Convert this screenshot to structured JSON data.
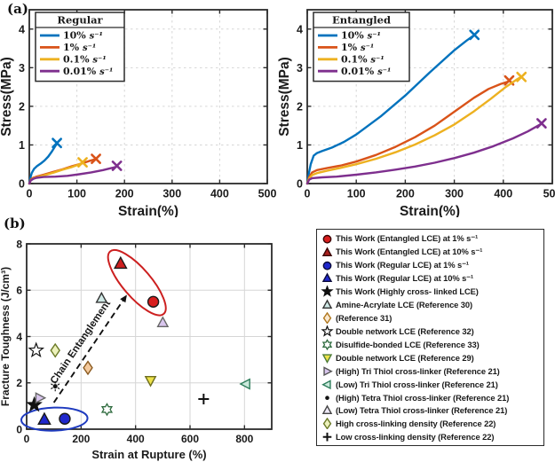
{
  "figure": {
    "panel_a_label": "(a)",
    "panel_b_label": "(b)"
  },
  "chart_data": [
    {
      "id": "regular",
      "type": "line",
      "legend_title": "Regular",
      "xlabel": "Strain(%)",
      "ylabel": "Stress(MPa)",
      "xlim": [
        0,
        500
      ],
      "ylim": [
        0,
        4.5
      ],
      "xticks": [
        0,
        100,
        200,
        300,
        400,
        500
      ],
      "yticks": [
        0,
        1,
        2,
        3,
        4
      ],
      "grid": "dashed",
      "legend_position": "top-left",
      "series": [
        {
          "name": "10%",
          "unit": "s⁻¹",
          "color": "#0072BD",
          "rupture": [
            58,
            1.05
          ],
          "points": [
            [
              0,
              0
            ],
            [
              2,
              0.14
            ],
            [
              5,
              0.27
            ],
            [
              10,
              0.38
            ],
            [
              16,
              0.45
            ],
            [
              24,
              0.52
            ],
            [
              32,
              0.6
            ],
            [
              40,
              0.7
            ],
            [
              48,
              0.84
            ],
            [
              54,
              0.96
            ],
            [
              58,
              1.03
            ]
          ]
        },
        {
          "name": "1%",
          "unit": "s⁻¹",
          "color": "#D95319",
          "rupture": [
            140,
            0.64
          ],
          "points": [
            [
              0,
              0
            ],
            [
              3,
              0.1
            ],
            [
              8,
              0.15
            ],
            [
              15,
              0.18
            ],
            [
              30,
              0.23
            ],
            [
              50,
              0.3
            ],
            [
              70,
              0.37
            ],
            [
              90,
              0.45
            ],
            [
              110,
              0.52
            ],
            [
              125,
              0.58
            ],
            [
              138,
              0.63
            ]
          ]
        },
        {
          "name": "0.1%",
          "unit": "s⁻¹",
          "color": "#EDB120",
          "rupture": [
            112,
            0.55
          ],
          "points": [
            [
              0,
              0
            ],
            [
              3,
              0.08
            ],
            [
              8,
              0.13
            ],
            [
              15,
              0.16
            ],
            [
              30,
              0.21
            ],
            [
              50,
              0.28
            ],
            [
              70,
              0.36
            ],
            [
              90,
              0.43
            ],
            [
              103,
              0.49
            ],
            [
              110,
              0.53
            ]
          ]
        },
        {
          "name": "0.01%",
          "unit": "s⁻¹",
          "color": "#7E2F8E",
          "rupture": [
            184,
            0.46
          ],
          "points": [
            [
              0,
              0
            ],
            [
              3,
              0.08
            ],
            [
              8,
              0.12
            ],
            [
              15,
              0.15
            ],
            [
              30,
              0.17
            ],
            [
              55,
              0.18
            ],
            [
              80,
              0.2
            ],
            [
              105,
              0.24
            ],
            [
              130,
              0.29
            ],
            [
              155,
              0.35
            ],
            [
              172,
              0.4
            ],
            [
              182,
              0.43
            ]
          ]
        }
      ]
    },
    {
      "id": "entangled",
      "type": "line",
      "legend_title": "Entangled",
      "xlabel": "Strain(%)",
      "ylabel": "Stress(MPa)",
      "xlim": [
        0,
        500
      ],
      "ylim": [
        0,
        4.5
      ],
      "xticks": [
        0,
        100,
        200,
        300,
        400,
        500
      ],
      "yticks": [
        0,
        1,
        2,
        3,
        4
      ],
      "grid": "dashed",
      "legend_position": "top-left",
      "series": [
        {
          "name": "10%",
          "unit": "s⁻¹",
          "color": "#0072BD",
          "rupture": [
            341,
            3.85
          ],
          "points": [
            [
              0,
              0
            ],
            [
              3,
              0.25
            ],
            [
              7,
              0.5
            ],
            [
              13,
              0.72
            ],
            [
              20,
              0.79
            ],
            [
              30,
              0.84
            ],
            [
              50,
              0.93
            ],
            [
              75,
              1.08
            ],
            [
              100,
              1.27
            ],
            [
              150,
              1.74
            ],
            [
              200,
              2.28
            ],
            [
              250,
              2.88
            ],
            [
              300,
              3.45
            ],
            [
              325,
              3.7
            ],
            [
              338,
              3.82
            ]
          ]
        },
        {
          "name": "1%",
          "unit": "s⁻¹",
          "color": "#D95319",
          "rupture": [
            412,
            2.67
          ],
          "points": [
            [
              0,
              0
            ],
            [
              4,
              0.17
            ],
            [
              10,
              0.29
            ],
            [
              20,
              0.35
            ],
            [
              40,
              0.4
            ],
            [
              70,
              0.47
            ],
            [
              100,
              0.57
            ],
            [
              140,
              0.74
            ],
            [
              180,
              0.95
            ],
            [
              220,
              1.2
            ],
            [
              260,
              1.5
            ],
            [
              300,
              1.86
            ],
            [
              340,
              2.22
            ],
            [
              370,
              2.45
            ],
            [
              395,
              2.58
            ],
            [
              410,
              2.64
            ]
          ]
        },
        {
          "name": "0.1%",
          "unit": "s⁻¹",
          "color": "#EDB120",
          "rupture": [
            437,
            2.76
          ],
          "points": [
            [
              0,
              0
            ],
            [
              4,
              0.13
            ],
            [
              10,
              0.22
            ],
            [
              20,
              0.27
            ],
            [
              40,
              0.33
            ],
            [
              70,
              0.41
            ],
            [
              100,
              0.5
            ],
            [
              140,
              0.64
            ],
            [
              180,
              0.81
            ],
            [
              220,
              1.01
            ],
            [
              260,
              1.25
            ],
            [
              300,
              1.53
            ],
            [
              340,
              1.87
            ],
            [
              375,
              2.2
            ],
            [
              405,
              2.5
            ],
            [
              428,
              2.7
            ],
            [
              435,
              2.75
            ]
          ]
        },
        {
          "name": "0.01%",
          "unit": "s⁻¹",
          "color": "#7E2F8E",
          "rupture": [
            478,
            1.56
          ],
          "points": [
            [
              0,
              0
            ],
            [
              4,
              0.1
            ],
            [
              10,
              0.14
            ],
            [
              30,
              0.16
            ],
            [
              60,
              0.18
            ],
            [
              100,
              0.23
            ],
            [
              140,
              0.29
            ],
            [
              180,
              0.36
            ],
            [
              220,
              0.44
            ],
            [
              260,
              0.54
            ],
            [
              300,
              0.66
            ],
            [
              340,
              0.8
            ],
            [
              380,
              0.97
            ],
            [
              420,
              1.17
            ],
            [
              450,
              1.35
            ],
            [
              475,
              1.53
            ]
          ]
        }
      ]
    },
    {
      "id": "toughness",
      "type": "scatter",
      "xlabel": "Strain at Rupture (%)",
      "ylabel": "Fracture Toughness (J/cm³)",
      "xlim": [
        0,
        900
      ],
      "ylim": [
        0,
        8
      ],
      "xticks": [
        0,
        200,
        400,
        600,
        800
      ],
      "yticks": [
        0,
        2,
        4,
        6,
        8
      ],
      "grid": "solid",
      "points": [
        {
          "label": "This Work (Entangled LCE) at 1% s⁻¹",
          "marker": "circle",
          "x": 465,
          "y": 5.5,
          "fill": "#D81E1E",
          "edge": "#1a1a1a",
          "size": 6
        },
        {
          "label": "This Work (Entangled LCE) at 10% s⁻¹",
          "marker": "triangle-up",
          "x": 345,
          "y": 7.15,
          "fill": "#CE1F1F",
          "edge": "#1a1a1a",
          "size": 7
        },
        {
          "label": "This Work (Regular LCE) at 1% s⁻¹",
          "marker": "circle",
          "x": 140,
          "y": 0.45,
          "fill": "#2028CC",
          "edge": "#1a1a1a",
          "size": 6
        },
        {
          "label": "This Work (Regular LCE) at 10% s⁻¹",
          "marker": "triangle-up",
          "x": 65,
          "y": 0.42,
          "fill": "#2028CC",
          "edge": "#1a1a1a",
          "size": 7
        },
        {
          "label": "This Work (Highly cross- linked LCE)",
          "marker": "star5",
          "x": 28,
          "y": 1.05,
          "fill": "#111111",
          "edge": "#111111",
          "size": 7
        },
        {
          "label": "Amine-Acrylate LCE (Reference 30)",
          "marker": "triangle-up",
          "x": 275,
          "y": 5.65,
          "fill": "#CFE9E6",
          "edge": "#333333",
          "size": 6
        },
        {
          "label": "(Reference 31)",
          "marker": "diamond",
          "x": 225,
          "y": 2.65,
          "fill": "#F4C99C",
          "edge": "#8A5A20",
          "size": 6
        },
        {
          "label": "Double network LCE (Reference 32)",
          "marker": "star5",
          "x": 35,
          "y": 3.4,
          "fill": "none",
          "edge": "#111111",
          "size": 7
        },
        {
          "label": "Disulfide-bonded LCE (Reference 33)",
          "marker": "star6",
          "x": 295,
          "y": 0.85,
          "fill": "none",
          "edge": "#2E6B3E",
          "size": 6
        },
        {
          "label": "Double network LCE (Reference 29)",
          "marker": "triangle-down",
          "x": 455,
          "y": 2.1,
          "fill": "#EDE24A",
          "edge": "#6E6E1E",
          "size": 6
        },
        {
          "label": "(High) Tri Thiol cross-linker (Reference 21)",
          "marker": "triangle-right",
          "x": 48,
          "y": 1.35,
          "fill": "#D9C6EE",
          "edge": "#666666",
          "size": 6
        },
        {
          "label": "(Low) Tri Thiol cross-linker (Reference 21)",
          "marker": "triangle-left",
          "x": 805,
          "y": 1.95,
          "fill": "#CBE9DC",
          "edge": "#2E7D5B",
          "size": 6
        },
        {
          "label": "(High) Tetra Thiol cross-linker (Reference 21)",
          "marker": "asterisk-dot",
          "x": 105,
          "y": 1.85,
          "fill": "#111111",
          "edge": "#111111",
          "size": 5
        },
        {
          "label": "(Low) Tetra Thiol cross-linker (Reference 21)",
          "marker": "triangle-up",
          "x": 500,
          "y": 4.6,
          "fill": "#D9C6EE",
          "edge": "#666666",
          "size": 6
        },
        {
          "label": "High cross-linking density (Reference 22)",
          "marker": "diamond",
          "x": 105,
          "y": 3.4,
          "fill": "#EDF2BC",
          "edge": "#6B7A28",
          "size": 6
        },
        {
          "label": "Low cross-linking density (Reference 22)",
          "marker": "plus",
          "x": 650,
          "y": 1.3,
          "fill": "#111111",
          "edge": "#111111",
          "size": 6
        }
      ],
      "annotations": {
        "arrow": {
          "from": [
            100,
            1.15
          ],
          "to": [
            368,
            5.8
          ],
          "label": "Chain Entanglement",
          "style": "dashed"
        },
        "ellipses": [
          {
            "p1": [
              345,
              7.15
            ],
            "p2": [
              465,
              5.5
            ],
            "pad": 18,
            "minor": 16,
            "color": "#CC1F1F",
            "name": "entangled-group-ellipse"
          },
          {
            "p1": [
              62,
              0.42
            ],
            "p2": [
              142,
              0.45
            ],
            "pad": 25,
            "minor": 13,
            "color": "#1F3BBF",
            "name": "regular-group-ellipse"
          }
        ]
      }
    }
  ],
  "legend_b": {
    "items": [
      {
        "marker": "circle",
        "fill": "#D81E1E",
        "edge": "#3a0505",
        "label": "This Work (Entangled LCE) at 1% s⁻¹"
      },
      {
        "marker": "triangle-up",
        "fill": "#A8201E",
        "edge": "#3a0505",
        "label": "This Work (Entangled LCE) at 10% s⁻¹"
      },
      {
        "marker": "circle",
        "fill": "#2028CC",
        "edge": "#0a0a3a",
        "label": "This Work (Regular LCE) at 1% s⁻¹"
      },
      {
        "marker": "triangle-up",
        "fill": "#2028CC",
        "edge": "#0a0a3a",
        "label": "This Work (Regular LCE) at 10% s⁻¹"
      },
      {
        "marker": "star5",
        "fill": "#111111",
        "edge": "#111111",
        "label": "This Work (Highly cross- linked LCE)"
      },
      {
        "marker": "triangle-up",
        "fill": "#CFE9E6",
        "edge": "#333333",
        "label": "Amine-Acrylate LCE (Reference 30)"
      },
      {
        "marker": "diamond",
        "fill": "#FBE9CF",
        "edge": "#B07820",
        "label": "(Reference 31)"
      },
      {
        "marker": "star5",
        "fill": "none",
        "edge": "#111111",
        "label": "Double network LCE (Reference 32)"
      },
      {
        "marker": "star6",
        "fill": "none",
        "edge": "#2E6B3E",
        "label": "Disulfide-bonded LCE (Reference 33)"
      },
      {
        "marker": "triangle-down",
        "fill": "#EDE24A",
        "edge": "#4E7D38",
        "label": "Double network LCE (Reference 29)"
      },
      {
        "marker": "triangle-right",
        "fill": "#D9C6EE",
        "edge": "#555555",
        "label": "(High) Tri Thiol cross-linker (Reference 21)"
      },
      {
        "marker": "triangle-left",
        "fill": "#CBE9DC",
        "edge": "#2E7D5B",
        "label": "(Low) Tri Thiol cross-linker (Reference 21)"
      },
      {
        "marker": "dot",
        "fill": "#111111",
        "edge": "#111111",
        "label": "(High) Tetra Thiol cross-linker (Reference 21)"
      },
      {
        "marker": "triangle-up",
        "fill": "#EFEAF8",
        "edge": "#444444",
        "label": "(Low) Tetra Thiol cross-linker (Reference 21)"
      },
      {
        "marker": "diamond",
        "fill": "#EDF2BC",
        "edge": "#6B7A28",
        "label": "High cross-linking density (Reference 22)"
      },
      {
        "marker": "plus",
        "fill": "#111111",
        "edge": "#111111",
        "label": "Low cross-linking density (Reference 22)"
      }
    ]
  }
}
